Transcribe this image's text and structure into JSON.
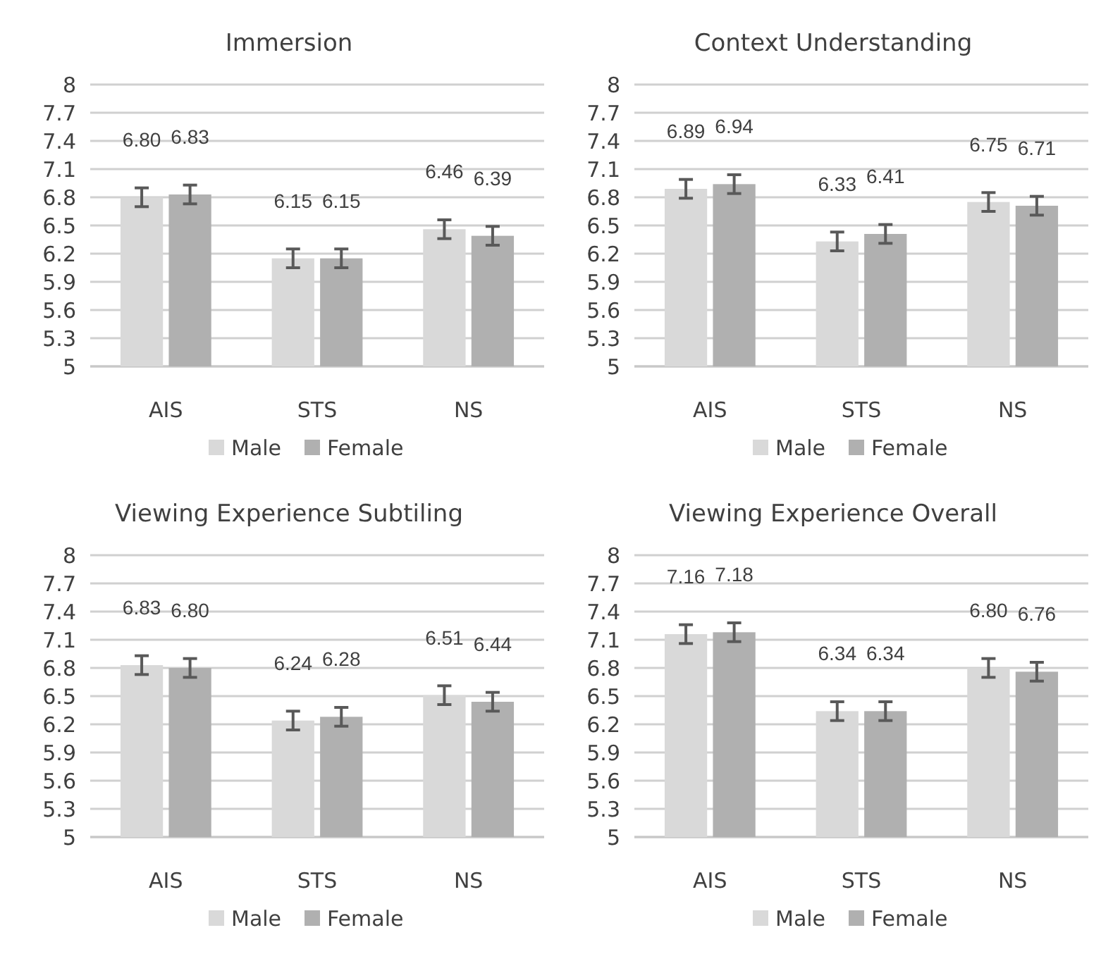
{
  "chart_data": [
    {
      "type": "bar",
      "title": "Immersion",
      "categories": [
        "AIS",
        "STS",
        "NS"
      ],
      "series": [
        {
          "name": "Male",
          "color": "#d9d9d9",
          "values": [
            6.8,
            6.15,
            6.46
          ],
          "errors": [
            0.1,
            0.1,
            0.1
          ],
          "value_labels": [
            "6.80",
            "6.15",
            "6.46"
          ]
        },
        {
          "name": "Female",
          "color": "#b0b0b0",
          "values": [
            6.83,
            6.15,
            6.39
          ],
          "errors": [
            0.1,
            0.1,
            0.1
          ],
          "value_labels": [
            "6.83",
            "6.15",
            "6.39"
          ]
        }
      ],
      "ylim": [
        5,
        8
      ],
      "yticks": [
        5,
        5.3,
        5.6,
        5.9,
        6.2,
        6.5,
        6.8,
        7.1,
        7.4,
        7.7,
        8
      ],
      "grid": "y",
      "legend": "bottom"
    },
    {
      "type": "bar",
      "title": "Context Understanding",
      "categories": [
        "AIS",
        "STS",
        "NS"
      ],
      "series": [
        {
          "name": "Male",
          "color": "#d9d9d9",
          "values": [
            6.89,
            6.33,
            6.75
          ],
          "errors": [
            0.1,
            0.1,
            0.1
          ],
          "value_labels": [
            "6.89",
            "6.33",
            "6.75"
          ]
        },
        {
          "name": "Female",
          "color": "#b0b0b0",
          "values": [
            6.94,
            6.41,
            6.71
          ],
          "errors": [
            0.1,
            0.1,
            0.1
          ],
          "value_labels": [
            "6.94",
            "6.41",
            "6.71"
          ]
        }
      ],
      "ylim": [
        5,
        8
      ],
      "yticks": [
        5,
        5.3,
        5.6,
        5.9,
        6.2,
        6.5,
        6.8,
        7.1,
        7.4,
        7.7,
        8
      ],
      "grid": "y",
      "legend": "bottom"
    },
    {
      "type": "bar",
      "title": "Viewing Experience Subtiling",
      "categories": [
        "AIS",
        "STS",
        "NS"
      ],
      "series": [
        {
          "name": "Male",
          "color": "#d9d9d9",
          "values": [
            6.83,
            6.24,
            6.51
          ],
          "errors": [
            0.1,
            0.1,
            0.1
          ],
          "value_labels": [
            "6.83",
            "6.24",
            "6.51"
          ]
        },
        {
          "name": "Female",
          "color": "#b0b0b0",
          "values": [
            6.8,
            6.28,
            6.44
          ],
          "errors": [
            0.1,
            0.1,
            0.1
          ],
          "value_labels": [
            "6.80",
            "6.28",
            "6.44"
          ]
        }
      ],
      "ylim": [
        5,
        8
      ],
      "yticks": [
        5,
        5.3,
        5.6,
        5.9,
        6.2,
        6.5,
        6.8,
        7.1,
        7.4,
        7.7,
        8
      ],
      "grid": "y",
      "legend": "bottom"
    },
    {
      "type": "bar",
      "title": "Viewing Experience Overall",
      "categories": [
        "AIS",
        "STS",
        "NS"
      ],
      "series": [
        {
          "name": "Male",
          "color": "#d9d9d9",
          "values": [
            7.16,
            6.34,
            6.8
          ],
          "errors": [
            0.1,
            0.1,
            0.1
          ],
          "value_labels": [
            "7.16",
            "6.34",
            "6.80"
          ]
        },
        {
          "name": "Female",
          "color": "#b0b0b0",
          "values": [
            7.18,
            6.34,
            6.76
          ],
          "errors": [
            0.1,
            0.1,
            0.1
          ],
          "value_labels": [
            "7.18",
            "6.34",
            "6.76"
          ]
        }
      ],
      "ylim": [
        5,
        8
      ],
      "yticks": [
        5,
        5.3,
        5.6,
        5.9,
        6.2,
        6.5,
        6.8,
        7.1,
        7.4,
        7.7,
        8
      ],
      "grid": "y",
      "legend": "bottom"
    }
  ]
}
